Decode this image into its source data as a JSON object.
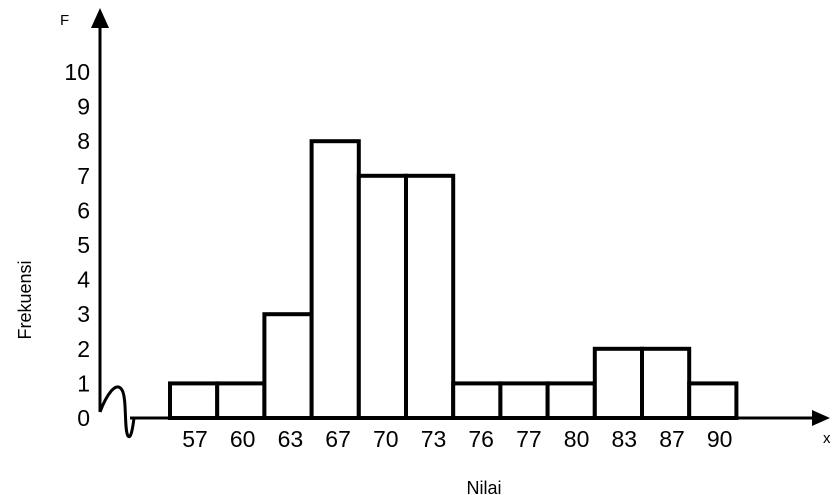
{
  "chart_data": {
    "type": "bar",
    "y_axis_letter": "F",
    "x_axis_letter": "x",
    "ylabel": "Frekuensi",
    "xlabel": "Nilai",
    "y_ticks": [
      "0",
      "1",
      "2",
      "3",
      "4",
      "5",
      "6",
      "7",
      "8",
      "9",
      "10"
    ],
    "ylim": [
      0,
      10
    ],
    "categories": [
      "57",
      "60",
      "63",
      "67",
      "70",
      "73",
      "76",
      "77",
      "80",
      "83",
      "87",
      "90"
    ],
    "values": [
      1,
      1,
      3,
      8,
      7,
      7,
      1,
      1,
      1,
      2,
      2,
      1
    ],
    "grid": false,
    "axis_break": true
  }
}
